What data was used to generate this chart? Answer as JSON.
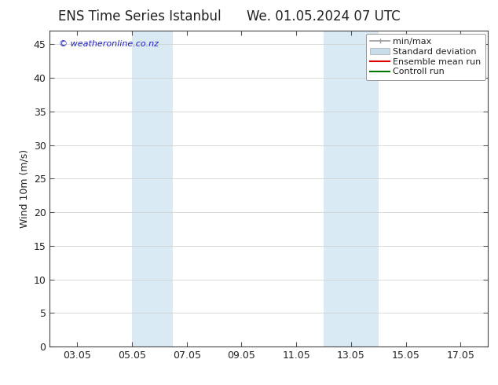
{
  "title_left": "ENS Time Series Istanbul",
  "title_right": "We. 01.05.2024 07 UTC",
  "ylabel": "Wind 10m (m/s)",
  "watermark": "© weatheronline.co.nz",
  "x_tick_labels": [
    "03.05",
    "05.05",
    "07.05",
    "09.05",
    "11.05",
    "13.05",
    "15.05",
    "17.05"
  ],
  "x_tick_positions": [
    2,
    4,
    6,
    8,
    10,
    12,
    14,
    16
  ],
  "x_min": 1,
  "x_max": 17,
  "y_min": 0,
  "y_max": 47,
  "y_ticks": [
    0,
    5,
    10,
    15,
    20,
    25,
    30,
    35,
    40,
    45
  ],
  "shaded_bands": [
    {
      "x_start": 4.0,
      "x_end": 5.5
    },
    {
      "x_start": 11.0,
      "x_end": 13.0
    }
  ],
  "shade_color": "#daeaf5",
  "background_color": "#ffffff",
  "plot_bg_color": "#ffffff",
  "font_color": "#222222",
  "title_fontsize": 12,
  "axis_fontsize": 9,
  "watermark_color": "#2222bb",
  "grid_color": "#cccccc",
  "legend_fontsize": 8,
  "minmax_color": "#999999",
  "std_color": "#c8dcea",
  "ens_color": "#dd0000",
  "ctrl_color": "#007700"
}
